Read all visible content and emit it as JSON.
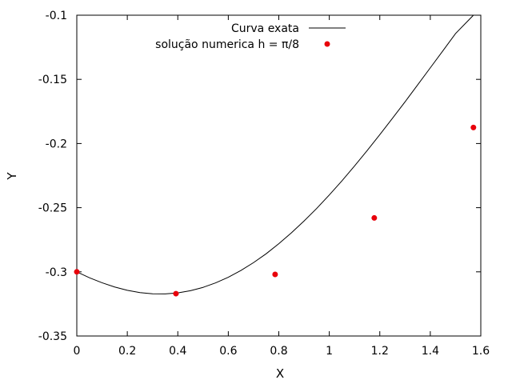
{
  "chart_data": {
    "type": "line",
    "xlabel": "X",
    "ylabel": "Y",
    "xlim": [
      0,
      1.6
    ],
    "ylim": [
      -0.35,
      -0.1
    ],
    "x_ticks": [
      0,
      0.2,
      0.4,
      0.6,
      0.8,
      1,
      1.2,
      1.4,
      1.6
    ],
    "x_tick_labels": [
      "0",
      "0.2",
      "0.4",
      "0.6",
      "0.8",
      "1",
      "1.2",
      "1.4",
      "1.6"
    ],
    "y_ticks": [
      -0.35,
      -0.3,
      -0.25,
      -0.2,
      -0.15,
      -0.1
    ],
    "y_tick_labels": [
      "-0.35",
      "-0.3",
      "-0.25",
      "-0.2",
      "-0.15",
      "-0.1"
    ],
    "grid": false,
    "legend_position": "top-right",
    "series": [
      {
        "name": "Curva exata",
        "style": "line",
        "color": "#000000",
        "x": [
          0,
          0.05,
          0.1,
          0.15,
          0.2,
          0.25,
          0.3,
          0.35,
          0.4,
          0.45,
          0.5,
          0.55,
          0.6,
          0.65,
          0.7,
          0.75,
          0.8,
          0.85,
          0.9,
          0.95,
          1.0,
          1.05,
          1.1,
          1.15,
          1.2,
          1.25,
          1.3,
          1.35,
          1.4,
          1.45,
          1.5,
          1.55,
          1.5708
        ],
        "y": [
          -0.3,
          -0.3046,
          -0.3085,
          -0.3118,
          -0.3144,
          -0.3162,
          -0.3171,
          -0.3172,
          -0.3164,
          -0.3147,
          -0.3121,
          -0.3086,
          -0.3042,
          -0.2989,
          -0.2928,
          -0.2859,
          -0.2781,
          -0.2696,
          -0.2604,
          -0.2506,
          -0.2401,
          -0.2291,
          -0.2175,
          -0.2055,
          -0.1931,
          -0.1804,
          -0.1675,
          -0.1543,
          -0.141,
          -0.1277,
          -0.1143,
          -0.1042,
          -0.1
        ]
      },
      {
        "name": "solução numerica h = π/8",
        "style": "points",
        "color": "#e8000b",
        "x": [
          0,
          0.3927,
          0.7854,
          1.1781,
          1.5708
        ],
        "y": [
          -0.3,
          -0.317,
          -0.302,
          -0.258,
          -0.1875
        ]
      }
    ]
  }
}
